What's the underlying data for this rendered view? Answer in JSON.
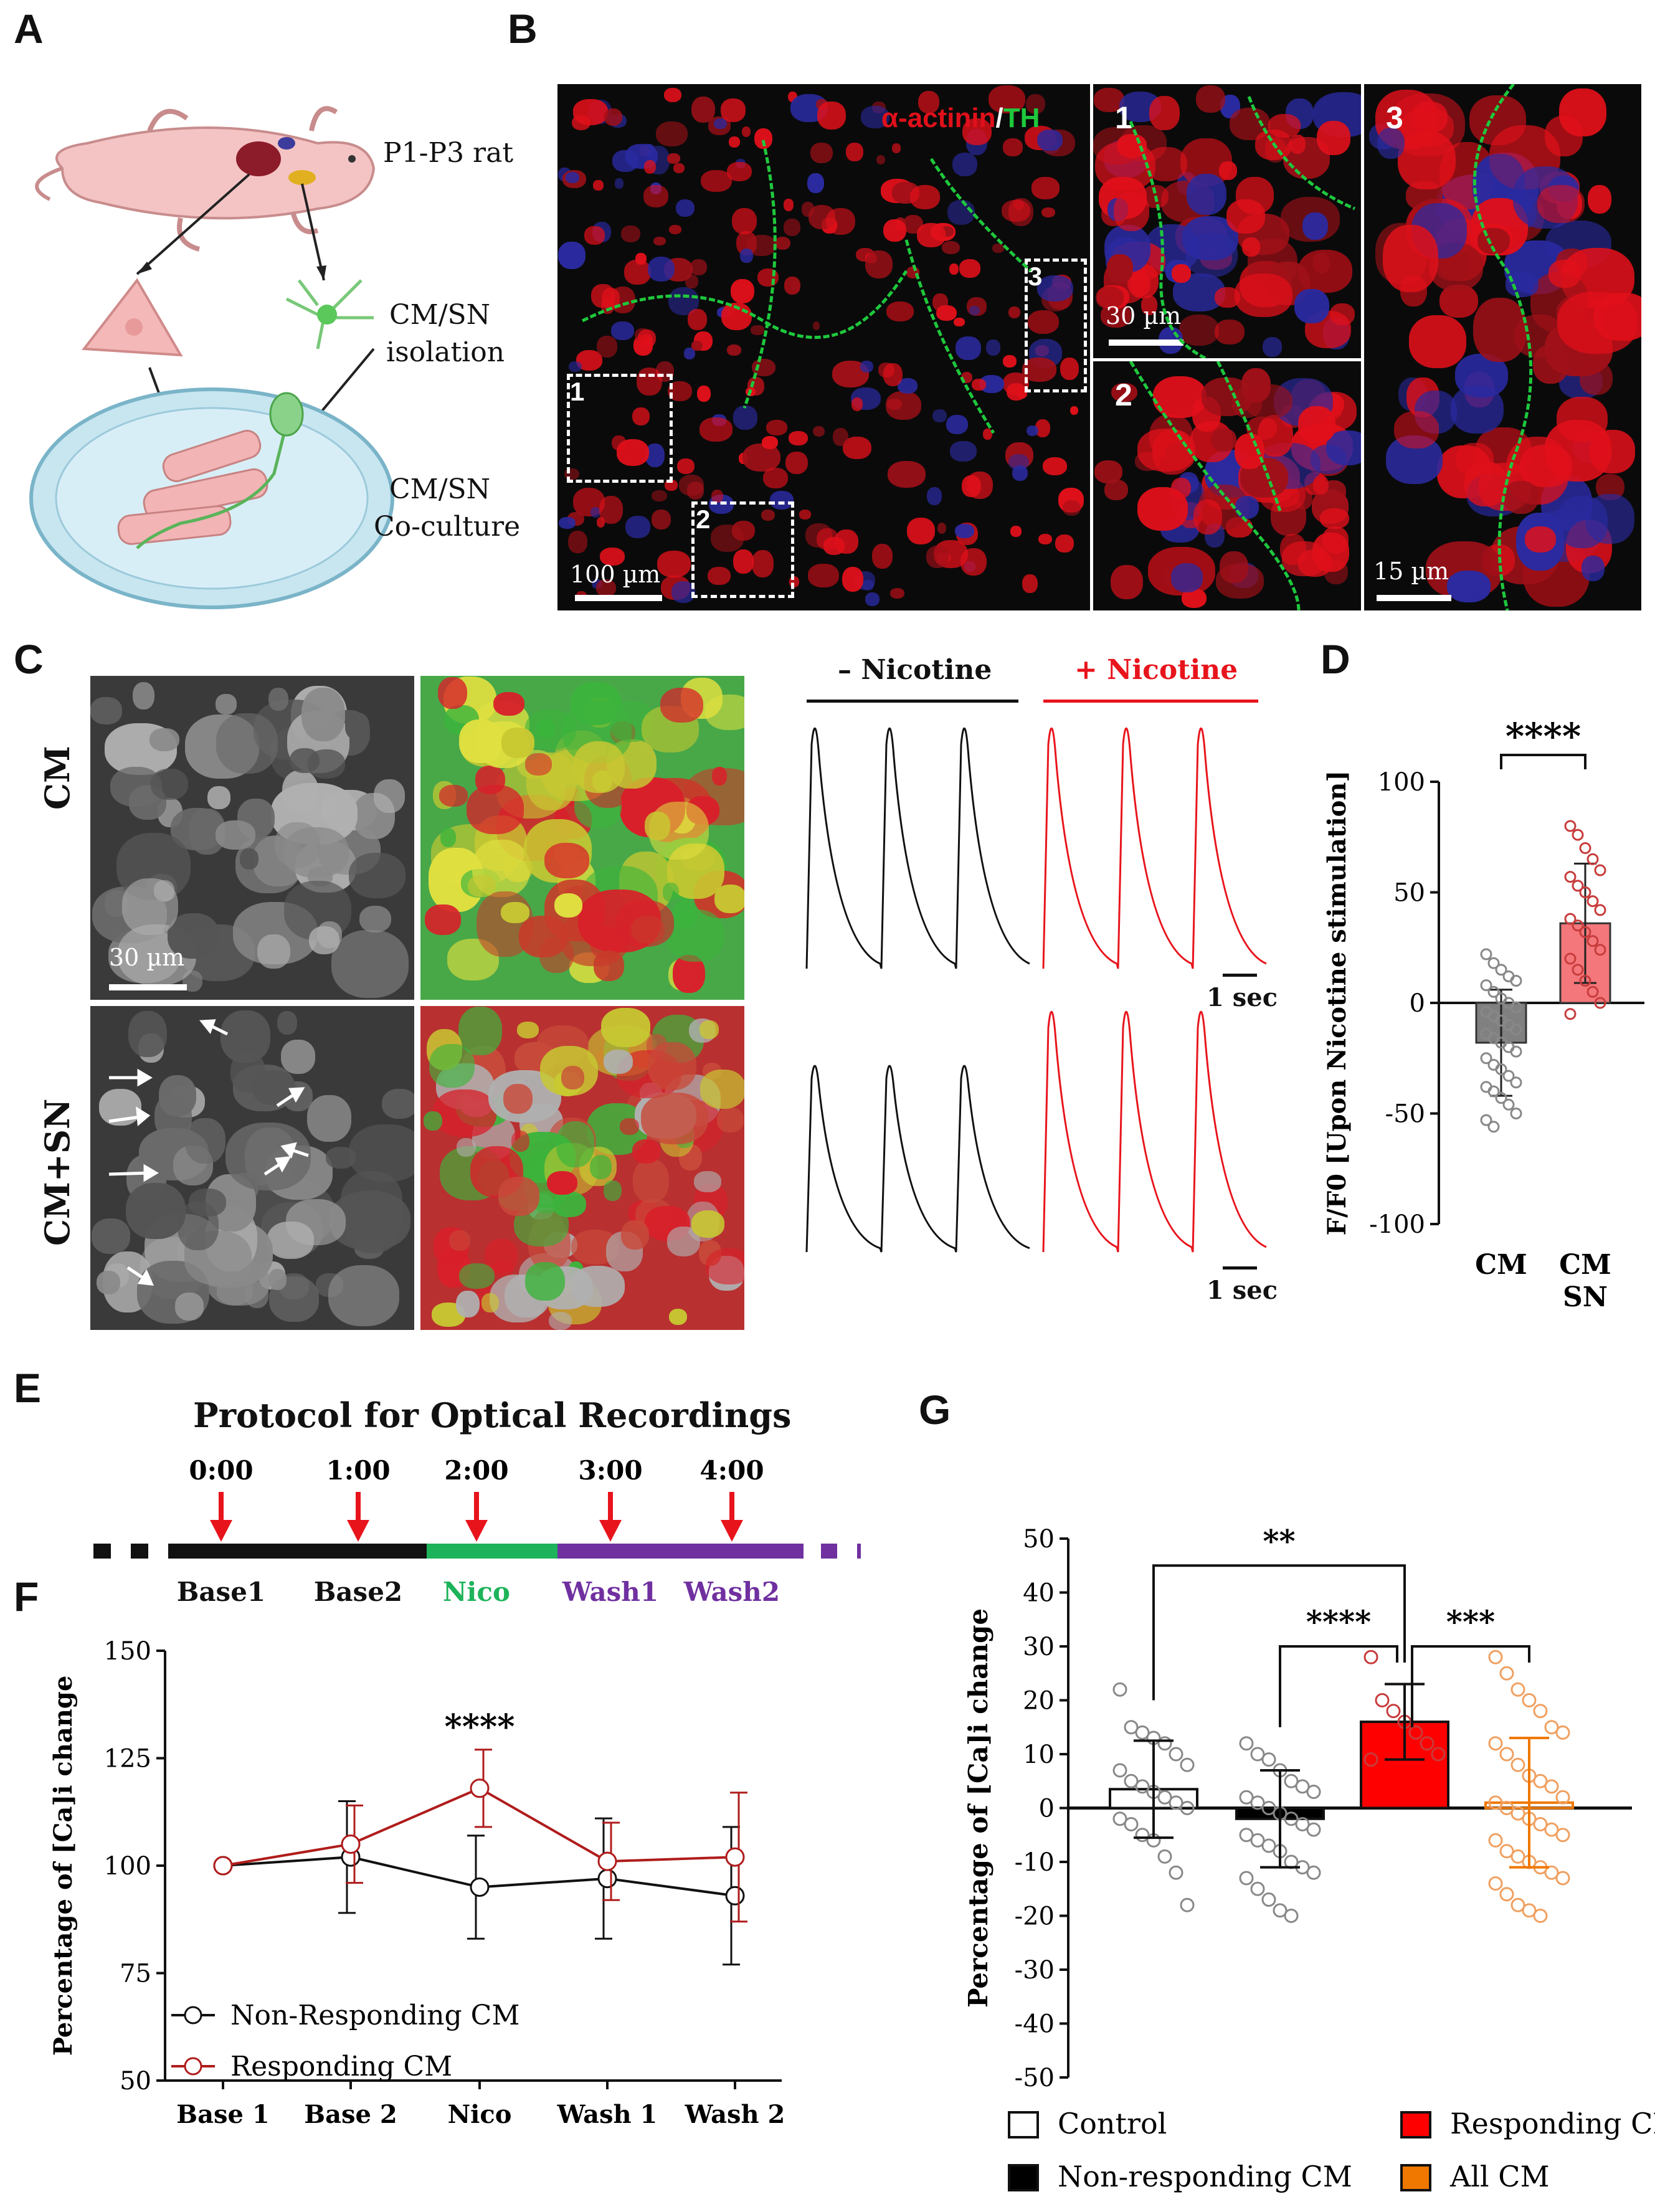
{
  "panels": {
    "A": "A",
    "B": "B",
    "C": "C",
    "D": "D",
    "E": "E",
    "F": "F",
    "G": "G"
  },
  "panelA": {
    "rat_label": "P1-P3 rat",
    "isolation_label_1": "CM/SN",
    "isolation_label_2": "isolation",
    "coculture_label_1": "CM/SN",
    "coculture_label_2": "Co-culture"
  },
  "panelB": {
    "stain_red": "α-actinin",
    "stain_sep": "/",
    "stain_green": "TH",
    "box1": "1",
    "box2": "2",
    "box3": "3",
    "scale_main": "100 µm",
    "scale_inset1": "30 µm",
    "scale_inset3": "15 µm",
    "inset1": "1",
    "inset2": "2",
    "inset3": "3",
    "colors": {
      "red": "#e0101a",
      "green": "#1ec83c",
      "blue": "#2a2aa0"
    }
  },
  "panelC": {
    "row1": "CM",
    "row2": "CM+SN",
    "scale": "30 µm",
    "minus_nicotine": "– Nicotine",
    "plus_nicotine": "+ Nicotine",
    "time_scale": "1 sec",
    "colors": {
      "control": "#111111",
      "nicotine": "#e8141c"
    }
  },
  "panelE": {
    "title": "Protocol for Optical Recordings",
    "times": [
      "0:00",
      "1:00",
      "2:00",
      "3:00",
      "4:00"
    ],
    "phases": [
      {
        "label": "Base1",
        "color": "#111111"
      },
      {
        "label": "Base2",
        "color": "#111111"
      },
      {
        "label": "Nico",
        "color": "#1db35a"
      },
      {
        "label": "Wash1",
        "color": "#7030a0"
      },
      {
        "label": "Wash2",
        "color": "#7030a0"
      }
    ]
  },
  "chart_data": [
    {
      "id": "D",
      "type": "bar",
      "ylabel": "F/F0 [Upon Nicotine stimulation]",
      "ylim": [
        -100,
        100
      ],
      "yticks": [
        -100,
        -50,
        0,
        50,
        100
      ],
      "categories": [
        "CM",
        "CM SN"
      ],
      "category_lines": [
        [
          "CM"
        ],
        [
          "CM",
          "SN"
        ]
      ],
      "values": [
        -18,
        36
      ],
      "sd": [
        24,
        27
      ],
      "significance": "****",
      "points": [
        [
          22,
          18,
          15,
          12,
          10,
          8,
          5,
          2,
          0,
          -2,
          -4,
          -6,
          -8,
          -10,
          -12,
          -14,
          -16,
          -18,
          -20,
          -22,
          -25,
          -28,
          -30,
          -33,
          -36,
          -38,
          -40,
          -43,
          -46,
          -50,
          -53,
          -56
        ],
        [
          80,
          76,
          70,
          65,
          60,
          57,
          53,
          50,
          46,
          42,
          38,
          35,
          32,
          28,
          24,
          20,
          15,
          10,
          5,
          0,
          -5
        ]
      ],
      "colors": {
        "bar1": "#808080",
        "bar2": "#f4777b",
        "pts1": "#888888",
        "pts2": "#c83c3c"
      }
    },
    {
      "id": "F",
      "type": "line",
      "ylabel": "Percentage of  [Ca]i change",
      "ylim": [
        50,
        150
      ],
      "yticks": [
        50,
        75,
        100,
        125,
        150
      ],
      "categories": [
        "Base 1",
        "Base 2",
        "Nico",
        "Wash 1",
        "Wash 2"
      ],
      "significance": "****",
      "significance_at": "Nico",
      "series": [
        {
          "name": "Non-Responding CM",
          "values": [
            100,
            102,
            95,
            97,
            93
          ],
          "sd": [
            0,
            13,
            12,
            14,
            16
          ],
          "color": "#111111"
        },
        {
          "name": "Responding CM",
          "values": [
            100,
            105,
            118,
            101,
            102
          ],
          "sd": [
            0,
            9,
            9,
            9,
            15
          ],
          "color": "#b01c1c"
        }
      ]
    },
    {
      "id": "G",
      "type": "bar",
      "ylabel": "Percentage of  [Ca]i change",
      "ylim": [
        -50,
        50
      ],
      "yticks": [
        -50,
        -40,
        -30,
        -20,
        -10,
        0,
        10,
        20,
        30,
        40,
        50
      ],
      "categories": [
        "Control",
        "Non-responding CM",
        "Responding CM",
        "All CM"
      ],
      "values": [
        3.5,
        -2,
        16,
        1
      ],
      "sd": [
        9,
        9,
        7,
        12
      ],
      "comparisons": [
        {
          "from": 0,
          "to": 2,
          "label": "**"
        },
        {
          "from": 1,
          "to": 2,
          "label": "****"
        },
        {
          "from": 2,
          "to": 3,
          "label": "***"
        }
      ],
      "points": [
        [
          22,
          15,
          14,
          13,
          12,
          10,
          8,
          7,
          5,
          4,
          3,
          2,
          1,
          0,
          -2,
          -3,
          -5,
          -6,
          -9,
          -12,
          -18
        ],
        [
          12,
          10,
          9,
          7,
          5,
          4,
          3,
          2,
          1,
          0,
          -1,
          -2,
          -3,
          -4,
          -5,
          -6,
          -7,
          -8,
          -10,
          -11,
          -12,
          -13,
          -15,
          -17,
          -19,
          -20
        ],
        [
          28,
          20,
          18,
          16,
          14,
          12,
          10,
          9
        ],
        [
          28,
          25,
          22,
          20,
          18,
          15,
          14,
          12,
          10,
          8,
          6,
          5,
          4,
          2,
          1,
          0,
          -1,
          -2,
          -3,
          -4,
          -5,
          -6,
          -8,
          -9,
          -10,
          -11,
          -12,
          -13,
          -14,
          -16,
          -18,
          -19,
          -20
        ]
      ],
      "colors": {
        "control": "#ffffff",
        "nonresp": "#000000",
        "resp": "#ff0000",
        "all": "#f07800",
        "pts": [
          "#888888",
          "#888888",
          "#c83c3c",
          "#f0a060"
        ]
      }
    }
  ]
}
